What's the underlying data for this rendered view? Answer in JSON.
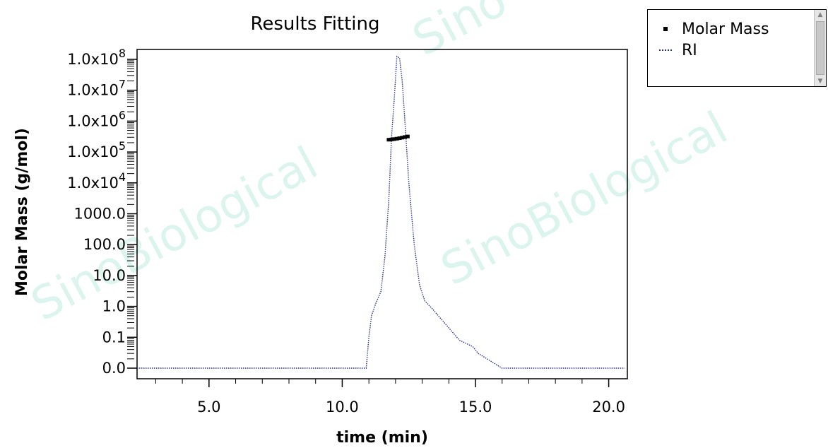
{
  "chart_data": {
    "type": "line",
    "title": "Results Fitting",
    "xlabel": "time (min)",
    "ylabel": "Molar Mass (g/mol)",
    "xlim": [
      2.3,
      20.7
    ],
    "ylim": [
      0.0,
      100000000.0
    ],
    "y_scale": "log",
    "x_ticks": [
      5.0,
      10.0,
      15.0,
      20.0
    ],
    "x_tick_labels": [
      "5.0",
      "10.0",
      "15.0",
      "20.0"
    ],
    "y_ticks": [
      {
        "label": "0.0",
        "base": "",
        "exp": ""
      },
      {
        "label": "0.1",
        "base": "",
        "exp": ""
      },
      {
        "label": "1.0",
        "base": "",
        "exp": ""
      },
      {
        "label": "10.0",
        "base": "",
        "exp": ""
      },
      {
        "label": "100.0",
        "base": "",
        "exp": ""
      },
      {
        "label": "1000.0",
        "base": "",
        "exp": ""
      },
      {
        "label": "",
        "base": "1.0x10",
        "exp": "4"
      },
      {
        "label": "",
        "base": "1.0x10",
        "exp": "5"
      },
      {
        "label": "",
        "base": "1.0x10",
        "exp": "6"
      },
      {
        "label": "",
        "base": "1.0x10",
        "exp": "7"
      },
      {
        "label": "",
        "base": "1.0x10",
        "exp": "8"
      }
    ],
    "grid": false,
    "legend_position": "outside-top-right",
    "series": [
      {
        "name": "Molar Mass",
        "style": "points",
        "color": "#000000",
        "points": [
          [
            11.75,
            250000
          ],
          [
            11.85,
            255000
          ],
          [
            11.95,
            262000
          ],
          [
            12.05,
            270000
          ],
          [
            12.15,
            280000
          ],
          [
            12.25,
            292000
          ],
          [
            12.35,
            305000
          ],
          [
            12.45,
            318000
          ]
        ]
      },
      {
        "name": "RI",
        "style": "dotted-line",
        "color": "#2a2f8c",
        "points": [
          [
            2.3,
            0.0
          ],
          [
            10.9,
            0.0
          ],
          [
            11.0,
            0.1
          ],
          [
            11.1,
            0.5
          ],
          [
            11.25,
            1.2
          ],
          [
            11.45,
            3
          ],
          [
            11.6,
            40
          ],
          [
            11.75,
            3000
          ],
          [
            11.85,
            300000
          ],
          [
            11.95,
            5000000
          ],
          [
            12.05,
            200000000
          ],
          [
            12.15,
            150000000
          ],
          [
            12.25,
            20000000
          ],
          [
            12.35,
            1000000
          ],
          [
            12.5,
            10000
          ],
          [
            12.7,
            100
          ],
          [
            12.9,
            5
          ],
          [
            13.1,
            1.5
          ],
          [
            13.4,
            0.8
          ],
          [
            13.7,
            0.4
          ],
          [
            14.0,
            0.2
          ],
          [
            14.4,
            0.08
          ],
          [
            14.9,
            0.05
          ],
          [
            15.1,
            0.03
          ],
          [
            16.0,
            0.01
          ],
          [
            20.6,
            0.0
          ]
        ]
      }
    ]
  },
  "legend": {
    "items": [
      {
        "label": "Molar Mass"
      },
      {
        "label": "RI"
      }
    ]
  },
  "watermarks": [
    "SinoBiological",
    "SinoBiological",
    "Sino"
  ]
}
